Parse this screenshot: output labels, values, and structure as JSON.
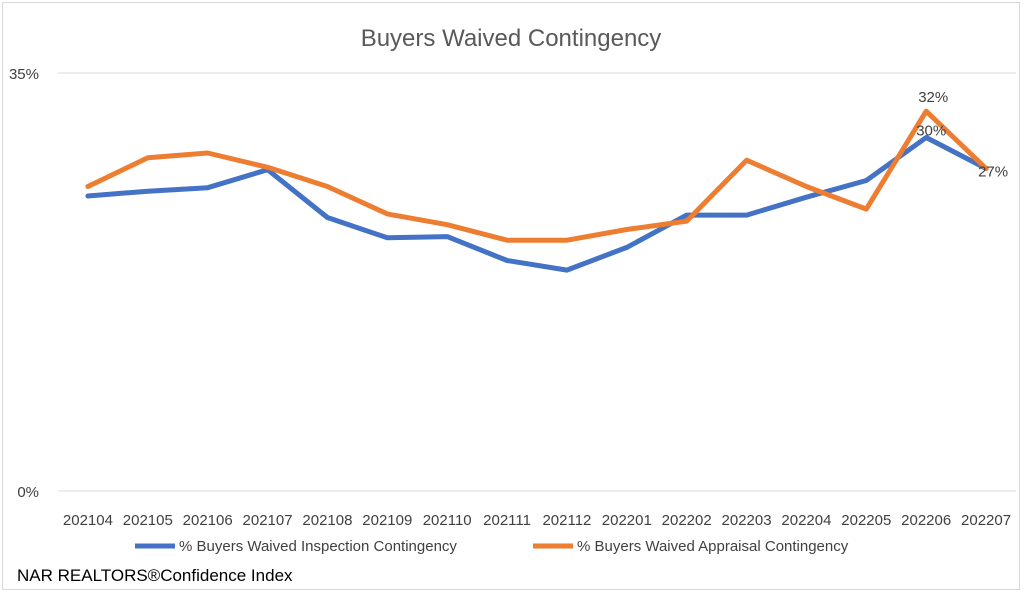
{
  "chart_data": {
    "type": "line",
    "title": "Buyers Waived Contingency",
    "xlabel": "",
    "ylabel": "",
    "categories": [
      "202104",
      "202105",
      "202106",
      "202107",
      "202108",
      "202109",
      "202110",
      "202111",
      "202112",
      "202201",
      "202202",
      "202203",
      "202204",
      "202205",
      "202206",
      "202207"
    ],
    "ylim": [
      0,
      35
    ],
    "y_tick_labels": [
      "35%",
      "0%"
    ],
    "grid": "top-and-bottom-lines",
    "legend": "bottom",
    "series": [
      {
        "name": "% Buyers Waived Inspection Contingency",
        "color": "#4472C4",
        "values": [
          24.7,
          25.1,
          25.4,
          26.9,
          22.9,
          21.2,
          21.3,
          19.3,
          18.5,
          20.4,
          23.1,
          23.1,
          24.6,
          26.0,
          29.6,
          27.0
        ]
      },
      {
        "name": "% Buyers Waived Appraisal Contingency",
        "color": "#ED7D31",
        "values": [
          25.5,
          27.9,
          28.3,
          27.1,
          25.5,
          23.2,
          22.3,
          21.0,
          21.0,
          21.9,
          22.6,
          27.7,
          25.5,
          23.6,
          31.8,
          27.0
        ]
      }
    ],
    "data_labels": [
      {
        "series": 1,
        "index": 14,
        "text": "32%"
      },
      {
        "series": 0,
        "index": 14,
        "text": "30%"
      },
      {
        "series": 0,
        "index": 15,
        "text": "27%"
      }
    ]
  },
  "footer": {
    "source": "NAR REALTORS®Confidence Index"
  }
}
